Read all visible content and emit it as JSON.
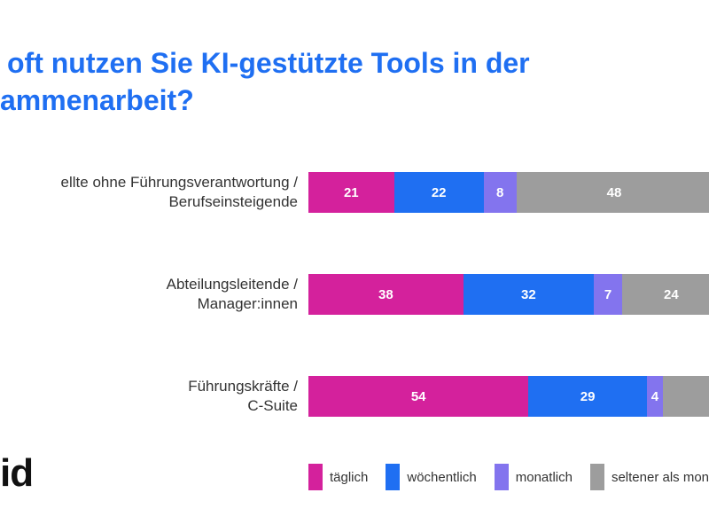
{
  "title": {
    "line1": "oft nutzen Sie KI-gestützte Tools in der",
    "line2": "ammenarbeit?"
  },
  "logo": {
    "text": "id"
  },
  "colors": {
    "title": "#1f6ff2",
    "category_text": "#333333",
    "value_text": "#ffffff",
    "legend_text": "#333333",
    "background": "#ffffff",
    "taeglich": "#d4219c",
    "woechentlich": "#1f6ff2",
    "monatlich": "#8374ee",
    "seltener": "#9d9d9d"
  },
  "chart_data": {
    "type": "bar",
    "orientation": "horizontal",
    "stacked": true,
    "values_unit": "percent",
    "title": "oft nutzen Sie KI-gestützte Tools in der ammenarbeit?",
    "legend_position": "bottom",
    "categories": [
      "ellte ohne Führungsverantwortung / Berufseinsteigende",
      "Abteilungsleitende / Manager:innen",
      "Führungskräfte / C-Suite"
    ],
    "category_lines": [
      [
        "ellte ohne Führungsverantwortung /",
        "Berufseinsteigende"
      ],
      [
        "Abteilungsleitende /",
        "Manager:innen"
      ],
      [
        "Führungskräfte /",
        "C-Suite"
      ]
    ],
    "series": [
      {
        "name": "täglich",
        "color": "#d4219c",
        "values": [
          21,
          38,
          54
        ]
      },
      {
        "name": "wöchentlich",
        "color": "#1f6ff2",
        "values": [
          22,
          32,
          29
        ]
      },
      {
        "name": "monatlich",
        "color": "#8374ee",
        "values": [
          8,
          7,
          4
        ]
      },
      {
        "name": "seltener als monatlich",
        "color": "#9d9d9d",
        "values": [
          48,
          24,
          null
        ]
      }
    ]
  }
}
